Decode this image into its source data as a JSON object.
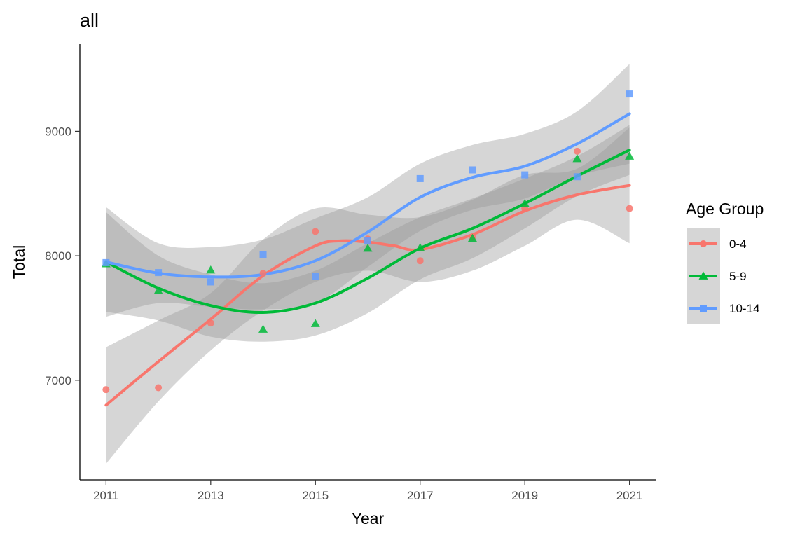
{
  "chart_data": {
    "type": "scatter",
    "title": "all",
    "xlabel": "Year",
    "ylabel": "Total",
    "xlim": [
      2010.5,
      2021.5
    ],
    "ylim": [
      6200,
      9700
    ],
    "x_ticks": [
      2011,
      2013,
      2015,
      2017,
      2019,
      2021
    ],
    "y_ticks": [
      7000,
      8000,
      9000
    ],
    "grid": false,
    "legend": {
      "title": "Age Group",
      "position": "right"
    },
    "smoothing": "loess with grey confidence band",
    "x": [
      2011,
      2012,
      2013,
      2014,
      2015,
      2016,
      2017,
      2018,
      2019,
      2020,
      2021
    ],
    "series": [
      {
        "name": "0-4",
        "color": "#F8766D",
        "marker": "circle",
        "points": [
          6925,
          6940,
          7460,
          7860,
          8195,
          8135,
          7960,
          8150,
          8380,
          8840,
          8380
        ],
        "smooth": [
          [
            2011,
            6800
          ],
          [
            2012,
            7150
          ],
          [
            2013,
            7490
          ],
          [
            2014,
            7840
          ],
          [
            2015,
            8080
          ],
          [
            2015.5,
            8120
          ],
          [
            2016,
            8110
          ],
          [
            2016.5,
            8080
          ],
          [
            2017,
            8050
          ],
          [
            2018,
            8170
          ],
          [
            2019,
            8360
          ],
          [
            2020,
            8490
          ],
          [
            2021,
            8565
          ]
        ],
        "band_upper": [
          [
            2011,
            7265
          ],
          [
            2012,
            7480
          ],
          [
            2013,
            7700
          ],
          [
            2014,
            8130
          ],
          [
            2015,
            8380
          ],
          [
            2016,
            8330
          ],
          [
            2017,
            8310
          ],
          [
            2018,
            8450
          ],
          [
            2019,
            8650
          ],
          [
            2020,
            8700
          ],
          [
            2021,
            9030
          ]
        ],
        "band_lower": [
          [
            2011,
            6330
          ],
          [
            2012,
            6830
          ],
          [
            2013,
            7240
          ],
          [
            2014,
            7560
          ],
          [
            2015,
            7790
          ],
          [
            2016,
            7880
          ],
          [
            2017,
            7790
          ],
          [
            2018,
            7880
          ],
          [
            2019,
            8080
          ],
          [
            2020,
            8290
          ],
          [
            2021,
            8100
          ]
        ]
      },
      {
        "name": "5-9",
        "color": "#00BA38",
        "marker": "triangle",
        "points": [
          7935,
          7720,
          7885,
          7410,
          7455,
          8060,
          8065,
          8140,
          8420,
          8780,
          8800
        ],
        "smooth": [
          [
            2011,
            7950
          ],
          [
            2012,
            7740
          ],
          [
            2013,
            7600
          ],
          [
            2014,
            7545
          ],
          [
            2015,
            7620
          ],
          [
            2016,
            7820
          ],
          [
            2017,
            8060
          ],
          [
            2018,
            8220
          ],
          [
            2019,
            8420
          ],
          [
            2020,
            8640
          ],
          [
            2021,
            8850
          ]
        ],
        "band_upper": [
          [
            2011,
            8350
          ],
          [
            2012,
            8000
          ],
          [
            2013,
            7850
          ],
          [
            2014,
            7780
          ],
          [
            2015,
            7880
          ],
          [
            2016,
            8100
          ],
          [
            2017,
            8310
          ],
          [
            2018,
            8460
          ],
          [
            2019,
            8620
          ],
          [
            2020,
            8800
          ],
          [
            2021,
            9050
          ]
        ],
        "band_lower": [
          [
            2011,
            7550
          ],
          [
            2012,
            7480
          ],
          [
            2013,
            7350
          ],
          [
            2014,
            7310
          ],
          [
            2015,
            7360
          ],
          [
            2016,
            7540
          ],
          [
            2017,
            7810
          ],
          [
            2018,
            7980
          ],
          [
            2019,
            8220
          ],
          [
            2020,
            8480
          ],
          [
            2021,
            8650
          ]
        ]
      },
      {
        "name": "10-14",
        "color": "#619CFF",
        "marker": "square",
        "points": [
          7945,
          7865,
          7790,
          8010,
          7835,
          8120,
          8620,
          8690,
          8650,
          8635,
          9300
        ],
        "smooth": [
          [
            2011,
            7950
          ],
          [
            2012,
            7860
          ],
          [
            2013,
            7830
          ],
          [
            2014,
            7850
          ],
          [
            2015,
            7960
          ],
          [
            2016,
            8190
          ],
          [
            2017,
            8470
          ],
          [
            2018,
            8630
          ],
          [
            2019,
            8720
          ],
          [
            2020,
            8900
          ],
          [
            2021,
            9140
          ]
        ],
        "band_upper": [
          [
            2011,
            8390
          ],
          [
            2012,
            8100
          ],
          [
            2013,
            8070
          ],
          [
            2014,
            8130
          ],
          [
            2015,
            8300
          ],
          [
            2016,
            8470
          ],
          [
            2017,
            8740
          ],
          [
            2018,
            8890
          ],
          [
            2019,
            8980
          ],
          [
            2020,
            9160
          ],
          [
            2021,
            9540
          ]
        ],
        "band_lower": [
          [
            2011,
            7510
          ],
          [
            2012,
            7620
          ],
          [
            2013,
            7590
          ],
          [
            2014,
            7570
          ],
          [
            2015,
            7620
          ],
          [
            2016,
            7910
          ],
          [
            2017,
            8200
          ],
          [
            2018,
            8370
          ],
          [
            2019,
            8460
          ],
          [
            2020,
            8640
          ],
          [
            2021,
            8740
          ]
        ]
      }
    ]
  }
}
